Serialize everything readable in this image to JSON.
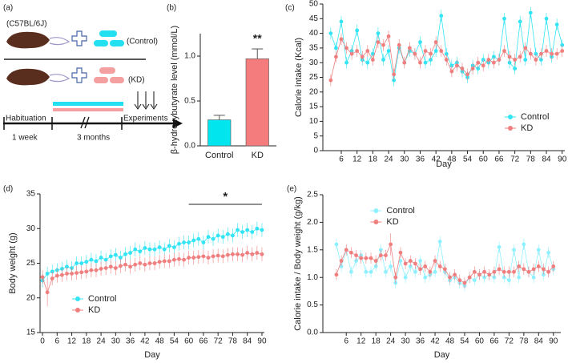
{
  "diagram": {
    "label": "(a)",
    "strain": "(C57BL/6J)",
    "groups": [
      "(Control)",
      "(KD)"
    ],
    "timeline": [
      "Habituation",
      "Experiments"
    ],
    "durations": [
      "1 week",
      "3 months"
    ]
  },
  "chart_data": [
    {
      "type": "bar",
      "panel": "(b)",
      "ylabel": "β-hydroxybutyrate level (mmol/L)",
      "categories": [
        "Control",
        "KD"
      ],
      "values": [
        0.29,
        0.97
      ],
      "errors": [
        0.05,
        0.11
      ],
      "colors": [
        "#00e5ee",
        "#f47c7c"
      ],
      "annotation": "**",
      "ylim": [
        0,
        1.25
      ],
      "yticks": [
        {
          "value": 0,
          "label": "0.0"
        },
        0.5,
        {
          "value": 1,
          "label": "1.0"
        }
      ]
    },
    {
      "type": "line",
      "panel": "(c)",
      "xlabel": "Day",
      "ylabel": "Calorie intake (Kcal)",
      "x": [
        2,
        4,
        6,
        8,
        10,
        12,
        14,
        16,
        18,
        20,
        22,
        24,
        26,
        28,
        30,
        32,
        34,
        36,
        38,
        40,
        42,
        44,
        46,
        48,
        50,
        52,
        54,
        56,
        58,
        60,
        62,
        64,
        66,
        68,
        70,
        72,
        74,
        76,
        78,
        80,
        82,
        84,
        86,
        88,
        90
      ],
      "series": [
        {
          "name": "Control",
          "color": "#33e4f4",
          "values": [
            40,
            35,
            44,
            30,
            34,
            41,
            31,
            30,
            33,
            40,
            31,
            34,
            24,
            35,
            30,
            34,
            33,
            37,
            30,
            31,
            34,
            46,
            33,
            29,
            30,
            27,
            25,
            29,
            28,
            31,
            30,
            32,
            31,
            45,
            30,
            28,
            44,
            31,
            47,
            33,
            31,
            45,
            32,
            43,
            36
          ],
          "errors": [
            2,
            2,
            2,
            2,
            2,
            2,
            2,
            2,
            2,
            2,
            2,
            2,
            2,
            2,
            2,
            2,
            2,
            2,
            2,
            2,
            2,
            2,
            2,
            2,
            2,
            2,
            2,
            2,
            2,
            2,
            2,
            2,
            2,
            2,
            2,
            2,
            2,
            2,
            2,
            2,
            2,
            2,
            2,
            2,
            2
          ]
        },
        {
          "name": "KD",
          "color": "#f07f7f",
          "values": [
            24,
            32,
            38,
            35,
            33,
            34,
            32,
            34,
            31,
            37,
            36,
            39,
            26,
            36,
            30,
            35,
            33,
            30,
            34,
            33,
            37,
            34,
            31,
            27,
            29,
            28,
            26,
            28,
            30,
            29,
            31,
            30,
            31,
            34,
            32,
            31,
            32,
            35,
            33,
            31,
            33,
            34,
            33,
            33,
            34
          ],
          "errors": [
            2,
            2,
            2,
            2,
            2,
            2,
            2,
            2,
            2,
            2,
            2,
            2,
            2,
            2,
            2,
            2,
            2,
            2,
            2,
            2,
            2,
            2,
            2,
            2,
            2,
            2,
            2,
            2,
            2,
            2,
            2,
            2,
            2,
            2,
            2,
            2,
            2,
            2,
            2,
            2,
            2,
            2,
            2,
            2,
            2
          ]
        }
      ],
      "xlim": [
        -1,
        91
      ],
      "xticks": [
        6,
        12,
        18,
        24,
        30,
        36,
        42,
        48,
        54,
        60,
        66,
        72,
        78,
        84,
        90
      ],
      "ylim": [
        0,
        50
      ],
      "yticks": [
        0,
        5,
        10,
        15,
        20,
        25,
        30,
        35,
        40,
        45,
        50
      ],
      "legend": "lower right"
    },
    {
      "type": "line",
      "panel": "(d)",
      "xlabel": "Day",
      "ylabel": "Body weight (g)",
      "x": [
        0,
        2,
        4,
        6,
        8,
        10,
        12,
        14,
        16,
        18,
        20,
        22,
        24,
        26,
        28,
        30,
        32,
        34,
        36,
        38,
        40,
        42,
        44,
        46,
        48,
        50,
        52,
        54,
        56,
        58,
        60,
        62,
        64,
        66,
        68,
        70,
        72,
        74,
        76,
        78,
        80,
        82,
        84,
        86,
        88,
        90
      ],
      "series": [
        {
          "name": "Control",
          "color": "#33e4f4",
          "values": [
            22.5,
            23.5,
            23.8,
            24,
            24.2,
            24.5,
            24.3,
            25,
            25,
            25.2,
            25.5,
            25.3,
            25.8,
            25.5,
            26,
            26.2,
            25.8,
            26.3,
            26.5,
            27,
            26.7,
            27.2,
            27,
            27,
            27.3,
            27,
            27.5,
            27.3,
            27.8,
            28,
            28,
            28.3,
            28.5,
            28,
            28.8,
            28.5,
            29,
            28.8,
            29.2,
            29,
            29.8,
            29.5,
            29.8,
            29.5,
            30,
            29.8
          ],
          "errors": [
            1,
            1,
            1,
            1,
            1,
            1,
            1,
            1,
            1,
            1,
            1,
            1,
            1,
            1,
            1,
            1,
            1,
            1,
            1,
            1,
            1,
            1,
            1,
            1,
            1,
            1,
            1,
            1,
            1,
            1,
            1,
            1,
            1,
            1,
            1,
            1,
            1,
            1,
            1,
            1,
            1,
            1,
            1,
            1,
            1,
            1
          ]
        },
        {
          "name": "KD",
          "color": "#f07f7f",
          "values": [
            23,
            20.8,
            22.8,
            23.2,
            23.3,
            23.5,
            23.5,
            23.6,
            23.7,
            23.8,
            24,
            24,
            24.2,
            24.3,
            24.5,
            24.3,
            24.6,
            24.8,
            24.5,
            24.8,
            25,
            24.8,
            25,
            25,
            25.2,
            25.3,
            25.3,
            25.5,
            25.6,
            25.5,
            25.8,
            25.8,
            25.9,
            26,
            25.8,
            26,
            26.1,
            26,
            26.2,
            26.3,
            26.3,
            26.2,
            26.5,
            26.3,
            26.5,
            26.3
          ],
          "errors": [
            1,
            2,
            1,
            1,
            1,
            1,
            1,
            1,
            1,
            1,
            1,
            1,
            1,
            1,
            1,
            1,
            1,
            1,
            1,
            1,
            1,
            1,
            1,
            1,
            1,
            1,
            1,
            1,
            1,
            1,
            1,
            1,
            1,
            1,
            1,
            1,
            1,
            1,
            1,
            1,
            1,
            1,
            1,
            1,
            1,
            1
          ]
        }
      ],
      "bracket": {
        "text": "*",
        "x": [
          60,
          90
        ],
        "y": 33.5
      },
      "xlim": [
        -1,
        91
      ],
      "xticks": [
        0,
        6,
        12,
        18,
        24,
        30,
        36,
        42,
        48,
        54,
        60,
        66,
        72,
        78,
        84,
        90
      ],
      "ylim": [
        15,
        35
      ],
      "yticks": [
        15,
        20,
        25,
        30,
        35
      ],
      "legend": "lower left"
    },
    {
      "type": "line",
      "panel": "(e)",
      "xlabel": "Day",
      "ylabel": "Calorie intake / Body weight (g/kg)",
      "x": [
        2,
        4,
        6,
        8,
        10,
        12,
        14,
        16,
        18,
        20,
        22,
        24,
        26,
        28,
        30,
        32,
        34,
        36,
        38,
        40,
        42,
        44,
        46,
        48,
        50,
        52,
        54,
        56,
        58,
        60,
        62,
        64,
        66,
        68,
        70,
        72,
        74,
        76,
        78,
        80,
        82,
        84,
        86,
        88,
        90
      ],
      "series": [
        {
          "name": "Control",
          "color": "#8ff0ff",
          "values": [
            1.6,
            1.2,
            1.5,
            1.1,
            1.3,
            1.4,
            1.1,
            1.1,
            1.2,
            1.5,
            1.1,
            1.2,
            0.9,
            1.3,
            1.0,
            1.2,
            1.1,
            1.3,
            1.0,
            1.05,
            1.1,
            1.65,
            1.1,
            0.95,
            1.0,
            0.9,
            0.85,
            1.0,
            0.95,
            1.05,
            1.0,
            1.05,
            1.0,
            1.55,
            1.0,
            0.95,
            1.5,
            1.0,
            1.6,
            1.1,
            1.0,
            1.5,
            1.05,
            1.45,
            1.15
          ],
          "errors": [
            0.1,
            0.1,
            0.1,
            0.1,
            0.1,
            0.1,
            0.1,
            0.1,
            0.1,
            0.1,
            0.1,
            0.1,
            0.1,
            0.1,
            0.1,
            0.1,
            0.1,
            0.1,
            0.1,
            0.1,
            0.1,
            0.1,
            0.1,
            0.1,
            0.1,
            0.1,
            0.1,
            0.1,
            0.1,
            0.1,
            0.1,
            0.1,
            0.1,
            0.1,
            0.1,
            0.1,
            0.1,
            0.1,
            0.1,
            0.1,
            0.1,
            0.1,
            0.1,
            0.1,
            0.1
          ]
        },
        {
          "name": "KD",
          "color": "#f07f7f",
          "values": [
            1.05,
            1.3,
            1.5,
            1.45,
            1.4,
            1.35,
            1.35,
            1.35,
            1.3,
            1.4,
            1.4,
            1.6,
            1.0,
            1.45,
            1.25,
            1.3,
            1.25,
            1.15,
            1.2,
            1.1,
            1.3,
            1.2,
            1.15,
            1.0,
            1.05,
            0.95,
            0.9,
            1.0,
            1.1,
            1.05,
            1.1,
            1.05,
            1.1,
            1.15,
            1.1,
            1.1,
            1.1,
            1.2,
            1.15,
            1.1,
            1.15,
            1.2,
            1.15,
            1.1,
            1.2
          ],
          "errors": [
            0.1,
            0.1,
            0.1,
            0.1,
            0.1,
            0.1,
            0.1,
            0.1,
            0.1,
            0.1,
            0.1,
            0.2,
            0.1,
            0.1,
            0.1,
            0.1,
            0.1,
            0.1,
            0.1,
            0.1,
            0.1,
            0.1,
            0.1,
            0.1,
            0.1,
            0.1,
            0.1,
            0.1,
            0.1,
            0.1,
            0.1,
            0.1,
            0.1,
            0.1,
            0.1,
            0.1,
            0.1,
            0.1,
            0.1,
            0.1,
            0.1,
            0.1,
            0.1,
            0.1,
            0.1
          ]
        }
      ],
      "xlim": [
        -3.5,
        93
      ],
      "xticks": [
        6,
        12,
        18,
        24,
        30,
        36,
        42,
        48,
        54,
        60,
        66,
        72,
        78,
        84,
        90
      ],
      "ylim": [
        0,
        2.5
      ],
      "yticks": [
        {
          "value": 0,
          "label": "0.0"
        },
        0.5,
        {
          "value": 1,
          "label": "1.0"
        },
        1.5,
        {
          "value": 2,
          "label": "2.0"
        },
        2.5
      ],
      "legend": "upper center"
    }
  ]
}
